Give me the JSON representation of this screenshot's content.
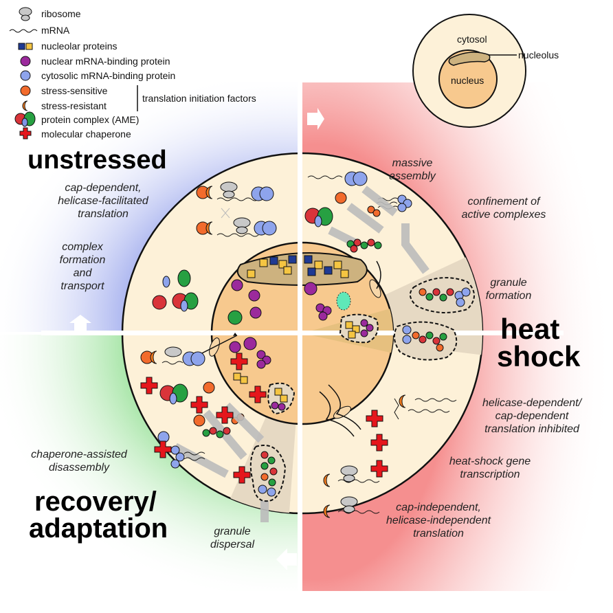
{
  "legend": {
    "items": [
      {
        "id": "ribosome",
        "label": "ribosome"
      },
      {
        "id": "mrna",
        "label": "mRNA"
      },
      {
        "id": "nucleolar",
        "label": "nucleolar proteins"
      },
      {
        "id": "nuclear_rbp",
        "label": "nuclear mRNA-binding protein"
      },
      {
        "id": "cyto_rbp",
        "label": "cytosolic mRNA-binding protein"
      },
      {
        "id": "stress_sensitive",
        "label": "stress-sensitive"
      },
      {
        "id": "stress_resistant",
        "label": "stress-resistant"
      },
      {
        "id": "ame",
        "label": "protein complex (AME)"
      },
      {
        "id": "chaperone",
        "label": "molecular chaperone"
      }
    ],
    "bracket_label": "translation initiation factors"
  },
  "cell_inset": {
    "cytosol": "cytosol",
    "nucleolus": "nucleolus",
    "nucleus": "nucleus"
  },
  "titles": {
    "unstressed": "unstressed",
    "heat": "heat",
    "shock": "shock",
    "recovery": "recovery/",
    "adaptation": "adaptation"
  },
  "notes": {
    "u1a": "cap-dependent,",
    "u1b": "helicase-facilitated",
    "u1c": "translation",
    "u2a": "complex",
    "u2b": "formation",
    "u2c": "and",
    "u2d": "transport",
    "h1a": "massive",
    "h1b": "assembly",
    "h2a": "confinement of",
    "h2b": "active complexes",
    "h3a": "granule",
    "h3b": "formation",
    "h4a": "helicase-dependent/",
    "h4b": "cap-dependent",
    "h4c": "translation inhibited",
    "h5a": "heat-shock gene",
    "h5b": "transcription",
    "h6a": "cap-independent,",
    "h6b": "helicase-independent",
    "h6c": "translation",
    "r1a": "chaperone-assisted",
    "r1b": "disassembly",
    "r2a": "granule",
    "r2b": "dispersal"
  },
  "colors": {
    "blue_bg": "#aab4f0",
    "red_bg": "#f5a3a3",
    "green_bg": "#a8e6a8",
    "cytoplasm": "#fdf1d8",
    "nucleus": "#f7c98e",
    "nucleolus": "#cdb27f",
    "ribosome": "#c8c8c8",
    "nucleolar_blue": "#1f3a93",
    "nucleolar_yellow": "#f5c542",
    "nuclear_rbp": "#9b2a9c",
    "cyto_rbp": "#8ea4ec",
    "sensitive": "#f26b2c",
    "resistant": "#f07a1e",
    "ame_red": "#d9343a",
    "ame_green": "#27a042",
    "ame_blue": "#7f95e6",
    "chaperone": "#e5161c",
    "granule_fill": "#e6d9c3"
  }
}
